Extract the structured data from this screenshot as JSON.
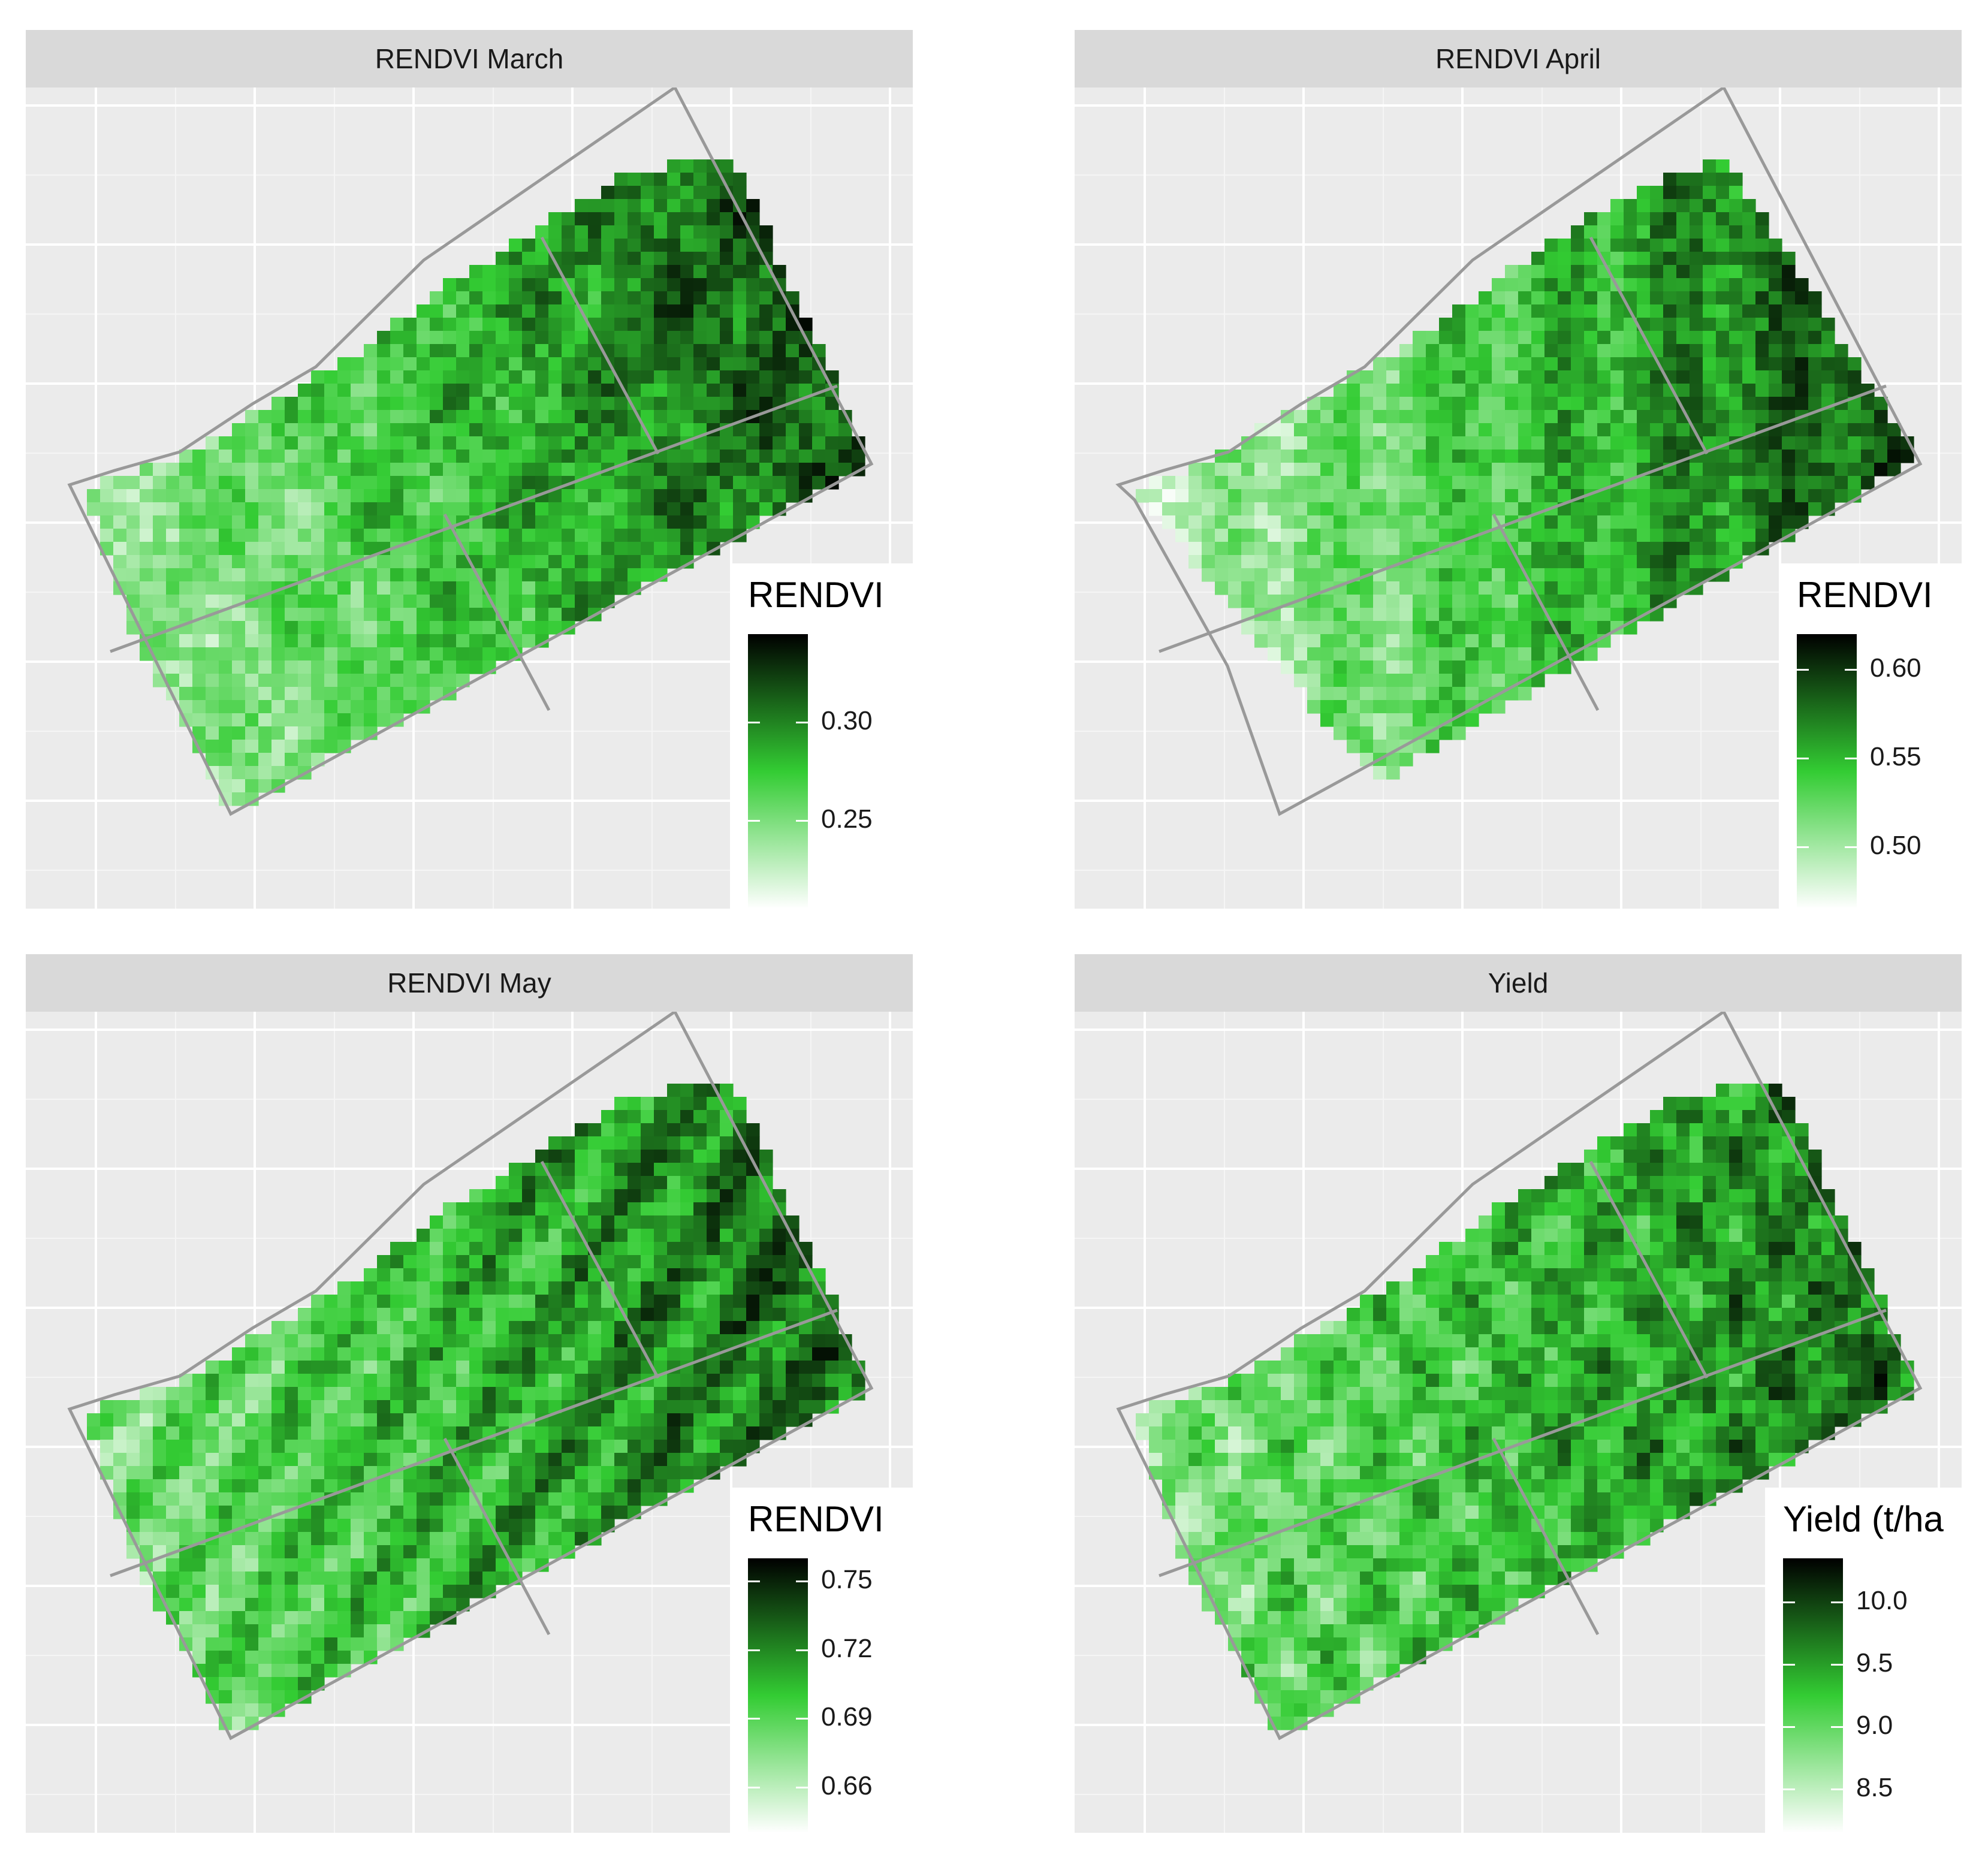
{
  "colors": {
    "scale_low": "#ffffff",
    "scale_mid": "#33cc33",
    "scale_high": "#000000",
    "panel_background": "#ebebeb",
    "strip_background": "#d9d9d9",
    "boundary": "#999999"
  },
  "chart_data": [
    {
      "type": "heatmap",
      "title": "RENDVI March",
      "legend_title": "RENDVI",
      "legend_ticks": [
        "0.30",
        "0.25"
      ],
      "legend_tick_values": [
        0.3,
        0.25
      ],
      "value_range": [
        0.205,
        0.345
      ],
      "grid": "on",
      "legend_position": "right"
    },
    {
      "type": "heatmap",
      "title": "RENDVI April",
      "legend_title": "RENDVI",
      "legend_ticks": [
        "0.60",
        "0.55",
        "0.50"
      ],
      "legend_tick_values": [
        0.6,
        0.55,
        0.5
      ],
      "value_range": [
        0.465,
        0.62
      ],
      "grid": "on",
      "legend_position": "right"
    },
    {
      "type": "heatmap",
      "title": "RENDVI May",
      "legend_title": "RENDVI",
      "legend_ticks": [
        "0.75",
        "0.72",
        "0.69",
        "0.66"
      ],
      "legend_tick_values": [
        0.75,
        0.72,
        0.69,
        0.66
      ],
      "value_range": [
        0.64,
        0.76
      ],
      "grid": "on",
      "legend_position": "right"
    },
    {
      "type": "heatmap",
      "title": "Yield",
      "legend_title": "Yield (t/ha",
      "legend_ticks": [
        "10.0",
        "9.5",
        "9.0",
        "8.5"
      ],
      "legend_tick_values": [
        10.0,
        9.5,
        9.0,
        8.5
      ],
      "value_range": [
        8.15,
        10.35
      ],
      "grid": "on",
      "legend_position": "right"
    }
  ]
}
